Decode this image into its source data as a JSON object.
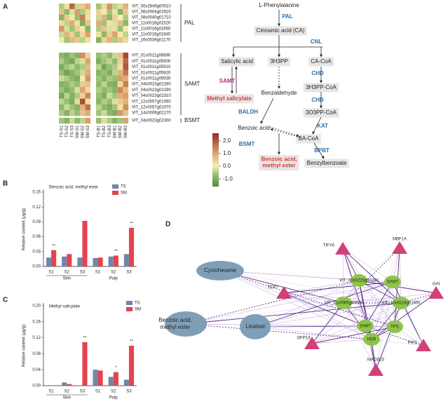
{
  "panel_labels": [
    "A",
    "B",
    "C",
    "D"
  ],
  "heatmap": {
    "columns": [
      "TS-S1",
      "TS-S2",
      "TS-S3",
      "SM-S1",
      "SM-S2",
      "SM-S3",
      "TS-B1",
      "TS-B2",
      "TS-B3",
      "SM-B1",
      "SM-B2",
      "SM-B3"
    ],
    "groups": [
      {
        "label": "PAL",
        "genes": [
          "VIT_00s2849g00010",
          "VIT_06s0004g02620",
          "VIT_08s0040g01710",
          "VIT_11s0016g01520",
          "VIT_11s0016g01660",
          "VIT_11s0016g01640",
          "VIT_16s0039g01170"
        ],
        "values": [
          [
            -0.5,
            0.2,
            1.8,
            -0.3,
            0.5,
            0.9,
            -0.6,
            0.3,
            1.2,
            -0.4,
            -0.2,
            0.8
          ],
          [
            0.6,
            -0.8,
            -0.2,
            1.1,
            -0.5,
            0.3,
            0.4,
            0.1,
            -0.6,
            0.2,
            -0.9,
            0.5
          ],
          [
            -0.9,
            0.5,
            0.1,
            -0.7,
            1.5,
            0.2,
            -0.3,
            0.8,
            -0.8,
            0.4,
            0.0,
            -0.5
          ],
          [
            0.3,
            -0.4,
            0.9,
            0.2,
            -1.0,
            0.6,
            0.9,
            -0.6,
            0.2,
            -0.2,
            0.7,
            -0.8
          ],
          [
            1.2,
            -0.2,
            -0.6,
            0.4,
            0.1,
            -0.9,
            -0.5,
            0.6,
            -0.2,
            0.3,
            -0.7,
            0.1
          ],
          [
            -0.3,
            0.8,
            0.4,
            -0.6,
            0.3,
            1.0,
            0.2,
            -0.8,
            0.5,
            1.0,
            0.1,
            -0.4
          ],
          [
            0.1,
            -0.6,
            0.7,
            0.5,
            -0.4,
            0.2,
            -0.9,
            0.4,
            0.8,
            -0.5,
            0.6,
            0.3
          ]
        ]
      },
      {
        "label": "SAMT",
        "genes": [
          "VIT_01s0011g06890",
          "VIT_01s0011g05900",
          "VIT_01s0011g05910",
          "VIT_01s0011g05920",
          "VIT_01s0011g05930",
          "VIT_04s0023g02280",
          "VIT_04s0023g02290",
          "VIT_04s0023g02310",
          "VIT_12s0057g01060",
          "VIT_12s0057g01070",
          "VIT_14s0006g02170"
        ],
        "values": [
          [
            -0.8,
            -1.0,
            -0.6,
            -0.9,
            1.3,
            0.4,
            -0.7,
            -0.5,
            -0.8,
            -0.3,
            0.6,
            2.2
          ],
          [
            -0.5,
            -0.9,
            -1.1,
            -0.4,
            -0.2,
            1.0,
            -1.0,
            -0.6,
            -0.4,
            -0.8,
            0.4,
            1.8
          ],
          [
            -1.0,
            -0.6,
            -0.4,
            -0.8,
            -0.5,
            0.7,
            -0.4,
            -1.1,
            -0.7,
            -0.5,
            0.2,
            2.0
          ],
          [
            -0.7,
            -1.2,
            -0.9,
            -0.6,
            -0.3,
            0.9,
            -0.9,
            -0.7,
            -1.0,
            -0.4,
            0.8,
            1.6
          ],
          [
            -0.3,
            -0.5,
            -0.8,
            -1.0,
            0.1,
            1.2,
            -0.6,
            -0.9,
            -0.5,
            -0.7,
            1.1,
            0.9
          ],
          [
            -0.9,
            -0.8,
            -0.5,
            -0.7,
            0.5,
            0.6,
            -0.8,
            -0.4,
            -0.9,
            -1.0,
            0.3,
            1.5
          ],
          [
            -0.6,
            -1.0,
            -0.7,
            -0.2,
            1.0,
            0.3,
            -0.5,
            -0.8,
            -0.6,
            -0.9,
            1.4,
            0.7
          ],
          [
            -1.1,
            -0.4,
            -0.9,
            -0.5,
            0.4,
            1.4,
            -0.7,
            -1.0,
            -0.3,
            -0.6,
            0.9,
            1.1
          ],
          [
            -0.4,
            -0.7,
            -1.0,
            0.3,
            2.1,
            0.2,
            -0.9,
            -0.5,
            -0.7,
            -0.2,
            0.5,
            0.8
          ],
          [
            -0.8,
            -0.3,
            -0.6,
            -0.9,
            0.8,
            1.7,
            -0.4,
            -0.8,
            -1.0,
            -0.6,
            0.2,
            1.3
          ],
          [
            -0.5,
            -0.9,
            -0.4,
            -0.7,
            0.6,
            0.9,
            -0.6,
            -0.3,
            -0.8,
            -1.0,
            1.2,
            0.6
          ]
        ]
      },
      {
        "label": "BSMT",
        "genes": [
          "VIT_04s0023g02300"
        ],
        "values": [
          [
            -0.6,
            -0.9,
            -0.3,
            -0.8,
            -0.4,
            1.1,
            -0.7,
            -0.2,
            -0.5,
            -0.9,
            -0.6,
            1.0
          ]
        ]
      }
    ],
    "colorbar": {
      "lim": [
        -1.6,
        2.6
      ],
      "ticks": [
        {
          "value": 2,
          "label": "2.0"
        },
        {
          "value": 1,
          "label": "1.0"
        },
        {
          "value": 0,
          "label": "0.0"
        },
        {
          "value": -1,
          "label": "-1.0"
        }
      ]
    }
  },
  "pathway": {
    "nodes": [
      [
        "L-Phenylalanine"
      ],
      [
        "Cinnamic acid (CA)"
      ],
      [
        "Salicylic acid"
      ],
      [
        "3H3PP"
      ],
      [
        "CA-CoA"
      ],
      [
        "Methyl salicylate"
      ],
      [
        "Benzaldehyde"
      ],
      [
        "3H3PP-CoA"
      ],
      [
        "3O3PP-CoA"
      ],
      [
        "Benzoic acid"
      ],
      [
        "BA-CoA"
      ],
      [
        "Benzoic acid,",
        "methyl ester"
      ],
      [
        "Benzylbenzoate"
      ]
    ],
    "enzymes": [
      "PAL",
      "CNL",
      "CHD",
      "SAMT",
      "CHD",
      "BALDH",
      "KAT",
      "BSMT",
      "BPBT"
    ]
  },
  "chart_data": [
    {
      "type": "bar",
      "title": "Benzoic acid, methyl ester",
      "y_label": "Relative content (μg/g)",
      "categories": [
        "S1",
        "S2",
        "S3",
        "S1",
        "S2",
        "S3"
      ],
      "groups": [
        "Skin",
        "Pulp"
      ],
      "series": [
        {
          "name": "TS",
          "color": "#6f86ad",
          "values": [
            0.018,
            0.02,
            0.018,
            0.017,
            0.02,
            0.025
          ]
        },
        {
          "name": "SM",
          "color": "#e5434f",
          "values": [
            0.033,
            0.025,
            0.092,
            0.018,
            0.022,
            0.078
          ]
        }
      ],
      "annotations": [
        "**",
        null,
        null,
        null,
        "**",
        "**"
      ],
      "ylim": [
        0,
        0.15
      ],
      "yticks": [
        {
          "value": 0,
          "label": "0.00"
        },
        0.03,
        0.06,
        0.09,
        0.12,
        0.15
      ]
    },
    {
      "type": "bar",
      "title": "Methyl salicylate",
      "y_label": "Relative content (μg/g)",
      "categories": [
        "S1",
        "S2",
        "S3",
        "S1",
        "S2",
        "S3"
      ],
      "groups": [
        "Skin",
        "Pulp"
      ],
      "series": [
        {
          "name": "TS",
          "color": "#6f86ad",
          "values": [
            0.001,
            0.008,
            0.001,
            0.04,
            0.022,
            0.015
          ]
        },
        {
          "name": "SM",
          "color": "#e5434f",
          "values": [
            0.001,
            0.004,
            0.109,
            0.038,
            0.034,
            0.1
          ]
        }
      ],
      "annotations": [
        null,
        null,
        "**",
        null,
        "*",
        "**"
      ],
      "ylim": [
        0,
        0.2
      ],
      "yticks": [
        {
          "value": 0,
          "label": "0.00"
        },
        0.04,
        0.08,
        0.12,
        0.16,
        {
          "value": 0.2,
          "label": "0.20"
        }
      ]
    }
  ],
  "network": {
    "metabolites": [
      [
        "Cyclohexene"
      ],
      [
        "Benzoic acid,",
        "methyl ester"
      ],
      [
        "Linalool"
      ]
    ],
    "genes": [
      "VIT_00s0225g00280",
      "SAMT",
      "VIT_11s0065g00530",
      "VIT_10s0116g01650",
      "SAMT",
      "TPS",
      "HDR"
    ],
    "transcription_factors": [
      "TIFYA",
      "MBF1A",
      "TCP7",
      "GAI",
      "OFP13",
      "PIF3",
      "MADS23"
    ]
  }
}
